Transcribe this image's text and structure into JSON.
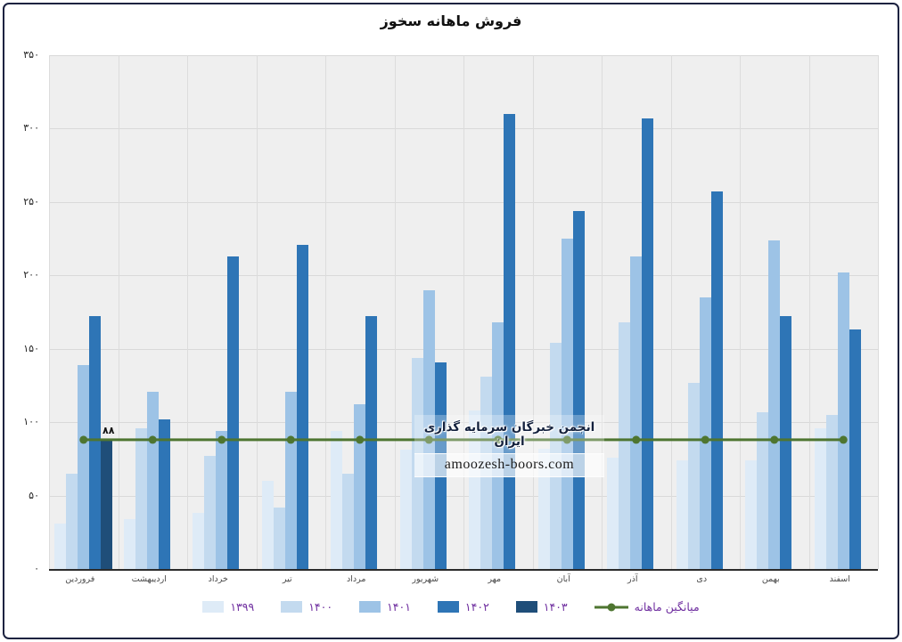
{
  "figure": {
    "title": "فروش ماهانه سخوز",
    "border_color": "#1c2240",
    "plot_background": "#efefef",
    "grid_color": "#d9d9d9",
    "legend_text_color": "#7030A0"
  },
  "watermark": {
    "line1": "انجمن خبرگان سرمایه گذاری ایران",
    "line2": "amoozesh-boors.com"
  },
  "chart_data": {
    "type": "bar",
    "title": "فروش ماهانه سخوز",
    "categories": [
      "فروردین",
      "اردیبهشت",
      "خرداد",
      "تیر",
      "مرداد",
      "شهریور",
      "مهر",
      "آبان",
      "آذر",
      "دی",
      "بهمن",
      "اسفند"
    ],
    "series": [
      {
        "name": "۱۳۹۹",
        "color": "#DEEBF7",
        "values": [
          31,
          34,
          38,
          60,
          94,
          81,
          108,
          82,
          76,
          74,
          74,
          96
        ]
      },
      {
        "name": "۱۴۰۰",
        "color": "#C3DAEF",
        "values": [
          65,
          96,
          77,
          42,
          65,
          144,
          131,
          154,
          168,
          127,
          107,
          105
        ]
      },
      {
        "name": "۱۴۰۱",
        "color": "#9DC3E6",
        "values": [
          139,
          121,
          94,
          121,
          112,
          190,
          168,
          225,
          213,
          185,
          224,
          202
        ]
      },
      {
        "name": "۱۴۰۲",
        "color": "#2E75B6",
        "values": [
          172,
          102,
          213,
          221,
          172,
          141,
          310,
          244,
          307,
          257,
          172,
          163
        ]
      },
      {
        "name": "۱۴۰۳",
        "color": "#1F4E79",
        "values": [
          88,
          null,
          null,
          null,
          null,
          null,
          null,
          null,
          null,
          null,
          null,
          null
        ]
      }
    ],
    "average_line": {
      "name": "میانگین ماهانه",
      "value": 88,
      "color": "#4e7530"
    },
    "data_labels": [
      {
        "series_index": 4,
        "category_index": 0,
        "text": "۸۸"
      }
    ],
    "y_ticks": [
      {
        "label": "۰",
        "value": 0
      },
      {
        "label": "۵۰",
        "value": 50
      },
      {
        "label": "۱۰۰",
        "value": 100
      },
      {
        "label": "۱۵۰",
        "value": 150
      },
      {
        "label": "۲۰۰",
        "value": 200
      },
      {
        "label": "۲۵۰",
        "value": 250
      },
      {
        "label": "۳۰۰",
        "value": 300
      },
      {
        "label": "۳۵۰",
        "value": 350
      }
    ],
    "ylim": [
      0,
      350
    ],
    "grid": true,
    "legend_position": "bottom"
  }
}
